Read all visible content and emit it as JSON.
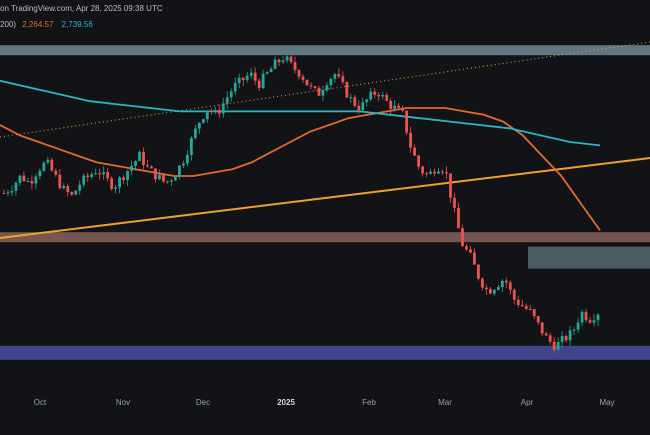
{
  "header": {
    "source_text": "on TradingView.com, Apr 28, 2025 09:38 UTC",
    "ma_label": "200)",
    "ma_value_1": "2,264.57",
    "ma_value_2": "2,739.56"
  },
  "colors": {
    "background": "#121316",
    "up_candle": "#26a69a",
    "down_candle": "#ef5350",
    "ma_orange": "#e4692d",
    "ma_cyan": "#29b6c6",
    "trendline_yellow": "#f0a12a",
    "dotted_line": "#e8a23a",
    "zone_top": "#7f9aa6",
    "zone_brown": "#9a6c66",
    "zone_mid": "#6f8e96",
    "zone_blue": "#4a52a8"
  },
  "chart_data": {
    "type": "candlestick",
    "title": "",
    "x_tick_labels": [
      "Oct",
      "Nov",
      "Dec",
      "2025",
      "Feb",
      "Mar",
      "Apr",
      "May"
    ],
    "close_path": [
      0.55,
      0.57,
      0.6,
      0.58,
      0.62,
      0.64,
      0.6,
      0.56,
      0.54,
      0.58,
      0.6,
      0.62,
      0.59,
      0.57,
      0.6,
      0.63,
      0.66,
      0.62,
      0.6,
      0.58,
      0.6,
      0.64,
      0.7,
      0.76,
      0.8,
      0.78,
      0.82,
      0.86,
      0.88,
      0.9,
      0.87,
      0.9,
      0.93,
      0.95,
      0.92,
      0.9,
      0.86,
      0.84,
      0.88,
      0.9,
      0.86,
      0.82,
      0.8,
      0.83,
      0.85,
      0.82,
      0.8,
      0.78,
      0.68,
      0.62,
      0.6,
      0.63,
      0.62,
      0.5,
      0.4,
      0.36,
      0.3,
      0.26,
      0.28,
      0.3,
      0.24,
      0.22,
      0.2,
      0.16,
      0.12,
      0.1,
      0.12,
      0.14,
      0.2,
      0.18,
      0.2
    ],
    "ma_orange_path": [
      0.75,
      0.72,
      0.7,
      0.68,
      0.66,
      0.64,
      0.63,
      0.62,
      0.61,
      0.6,
      0.6,
      0.61,
      0.62,
      0.64,
      0.67,
      0.7,
      0.73,
      0.75,
      0.77,
      0.78,
      0.79,
      0.8,
      0.8,
      0.8,
      0.79,
      0.78,
      0.76,
      0.72,
      0.66,
      0.6,
      0.52,
      0.44
    ],
    "ma_cyan_path": [
      0.88,
      0.86,
      0.84,
      0.82,
      0.81,
      0.8,
      0.79,
      0.79,
      0.79,
      0.79,
      0.79,
      0.79,
      0.79,
      0.78,
      0.77,
      0.76,
      0.75,
      0.74,
      0.72,
      0.7,
      0.69
    ],
    "zones": [
      {
        "name": "resistance-top",
        "level": 0.97
      },
      {
        "name": "resistance-brown",
        "level": 0.42
      },
      {
        "name": "resistance-mid",
        "level": 0.36
      },
      {
        "name": "support-blue",
        "level": 0.08
      }
    ]
  }
}
